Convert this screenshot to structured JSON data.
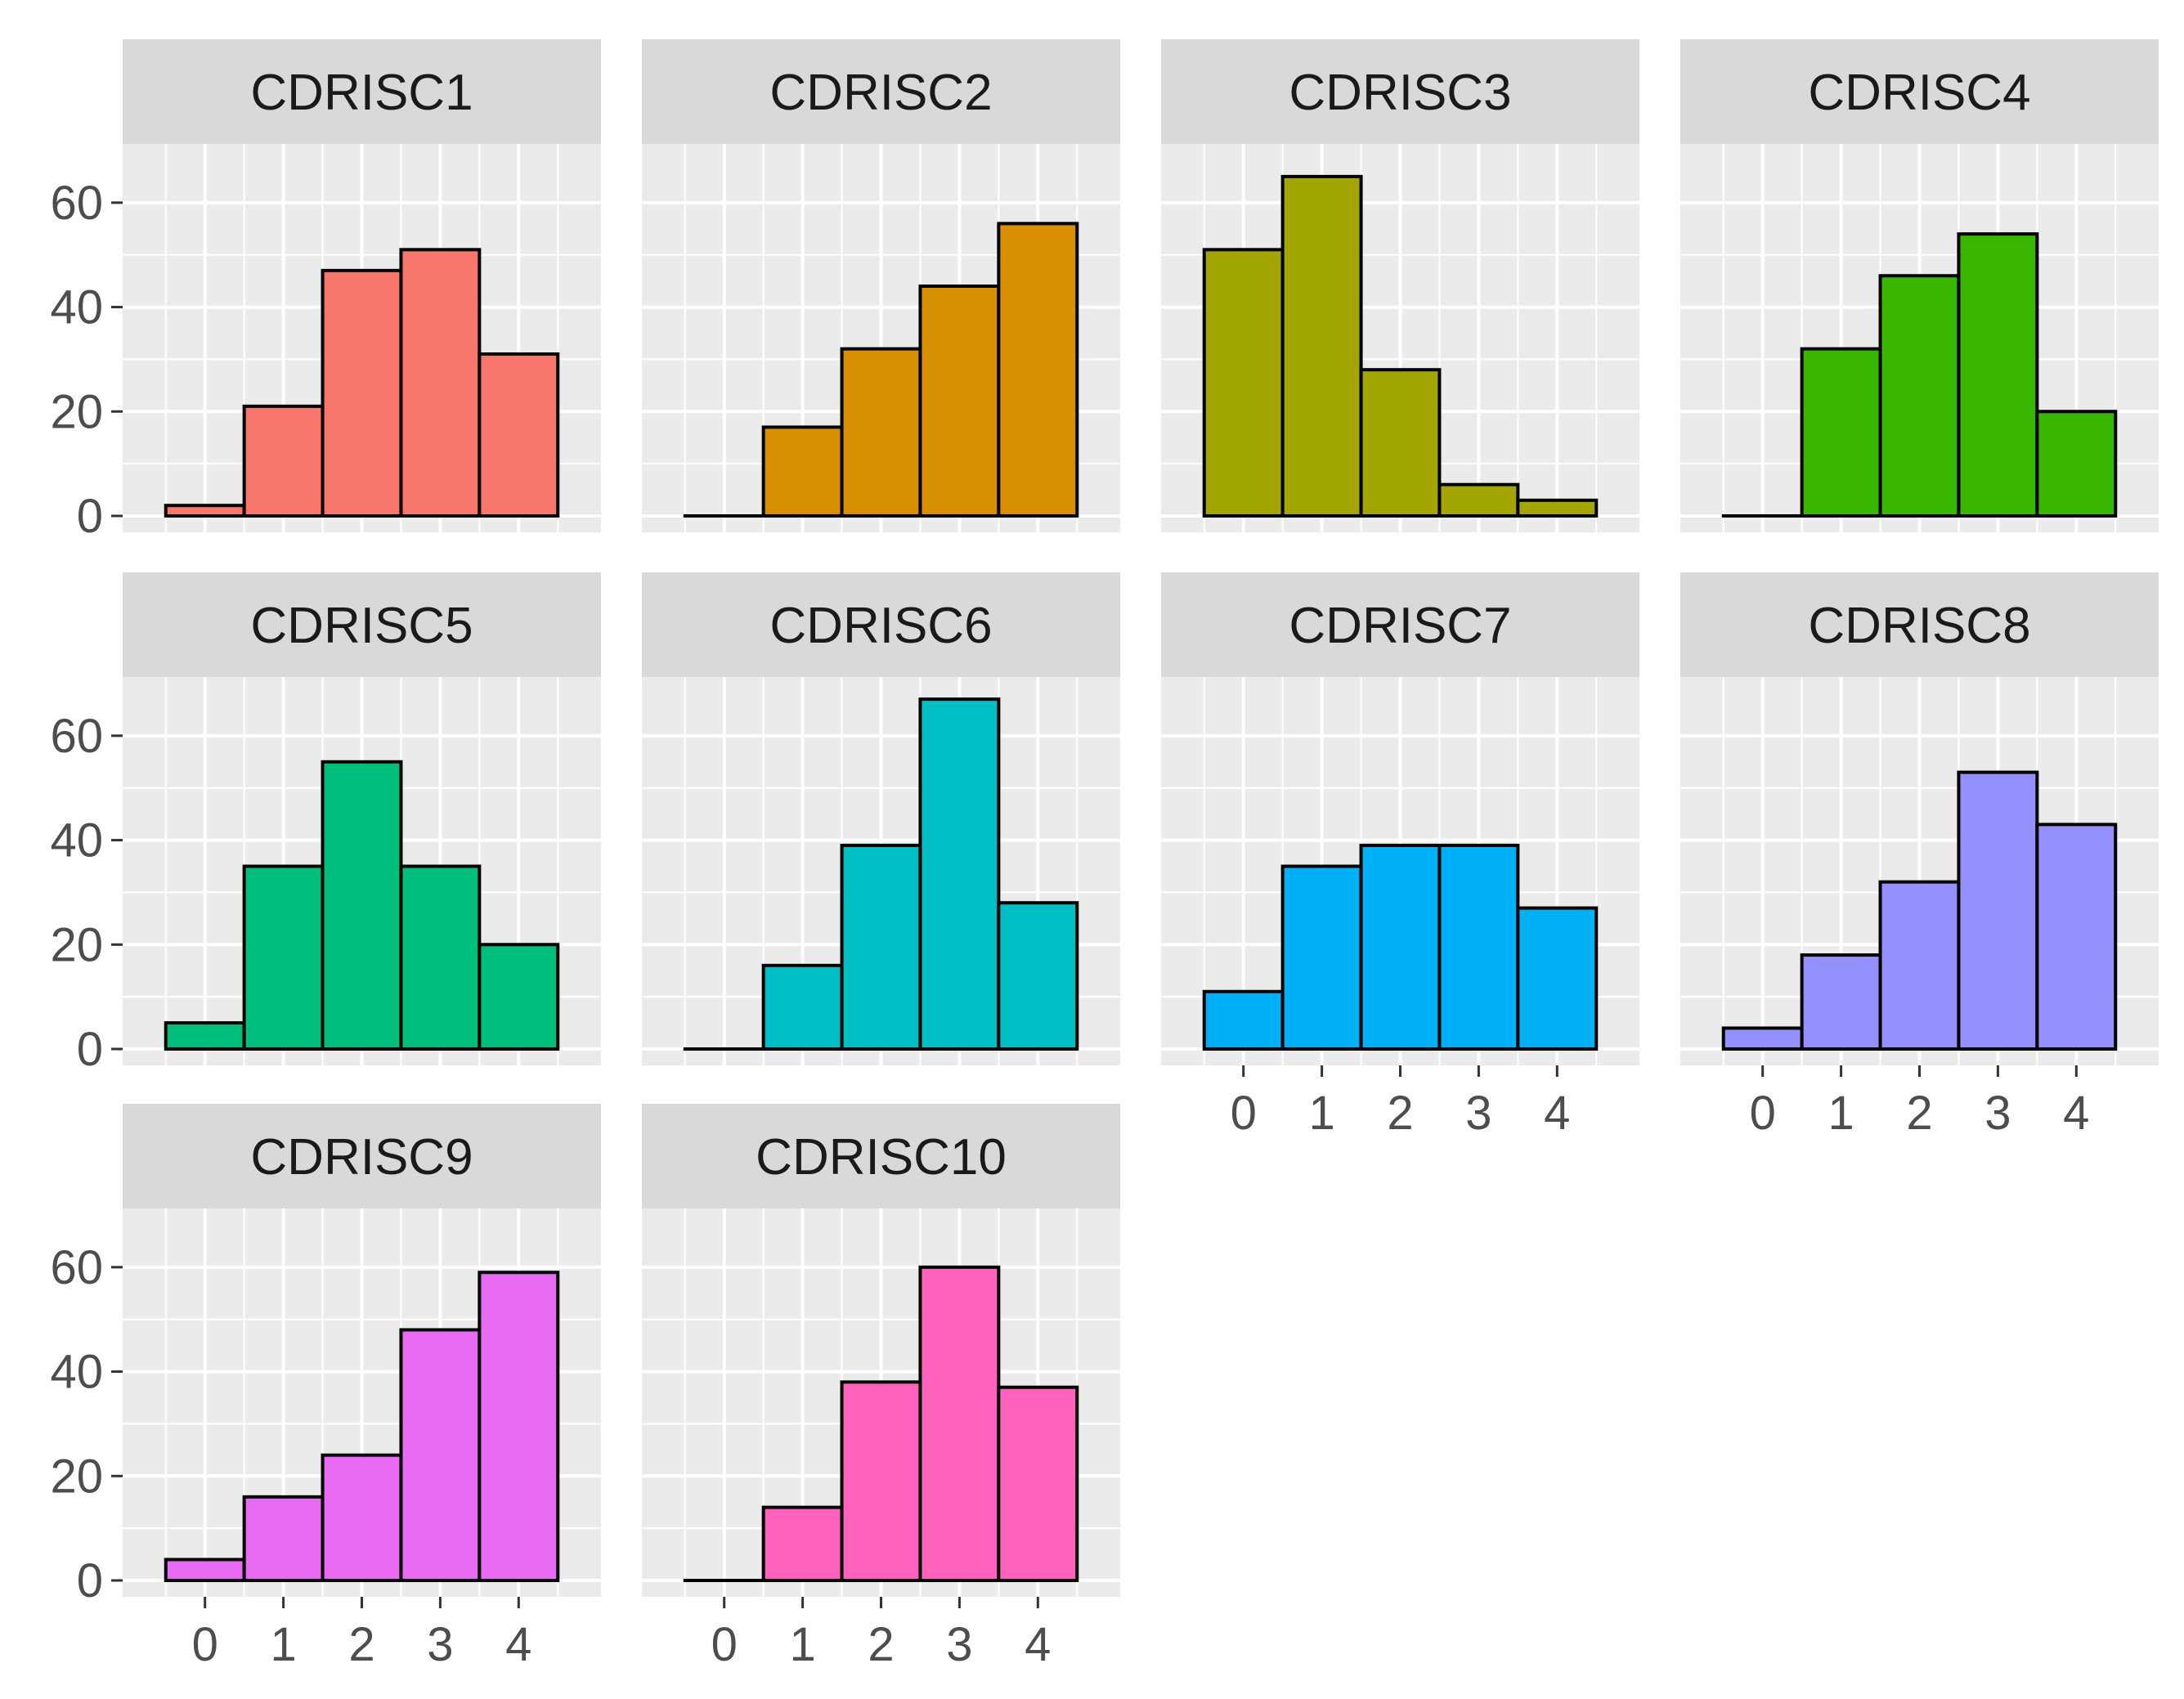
{
  "chart_data": {
    "type": "bar",
    "layout": "facet_wrap",
    "ncol": 4,
    "categories": [
      "0",
      "1",
      "2",
      "3",
      "4"
    ],
    "ylim": [
      0,
      70
    ],
    "yticks": [
      0,
      20,
      40,
      60
    ],
    "xticks": [
      0,
      1,
      2,
      3,
      4
    ],
    "xlabel": "",
    "ylabel": "",
    "panels": [
      {
        "name": "CDRISC1",
        "color": "#F8766D",
        "values": [
          2,
          21,
          47,
          51,
          31
        ]
      },
      {
        "name": "CDRISC2",
        "color": "#D89000",
        "values": [
          0,
          17,
          32,
          44,
          56
        ]
      },
      {
        "name": "CDRISC3",
        "color": "#A3A500",
        "values": [
          51,
          65,
          28,
          6,
          3
        ]
      },
      {
        "name": "CDRISC4",
        "color": "#39B600",
        "values": [
          0,
          32,
          46,
          54,
          20
        ]
      },
      {
        "name": "CDRISC5",
        "color": "#00BF7D",
        "values": [
          5,
          35,
          55,
          35,
          20
        ]
      },
      {
        "name": "CDRISC6",
        "color": "#00BFC4",
        "values": [
          0,
          16,
          39,
          67,
          28
        ]
      },
      {
        "name": "CDRISC7",
        "color": "#00B0F6",
        "values": [
          11,
          35,
          39,
          39,
          27
        ]
      },
      {
        "name": "CDRISC8",
        "color": "#9590FF",
        "values": [
          4,
          18,
          32,
          53,
          43
        ]
      },
      {
        "name": "CDRISC9",
        "color": "#E76BF3",
        "values": [
          4,
          16,
          24,
          48,
          59
        ]
      },
      {
        "name": "CDRISC10",
        "color": "#FF62BC",
        "values": [
          0,
          14,
          38,
          60,
          37
        ]
      }
    ]
  }
}
